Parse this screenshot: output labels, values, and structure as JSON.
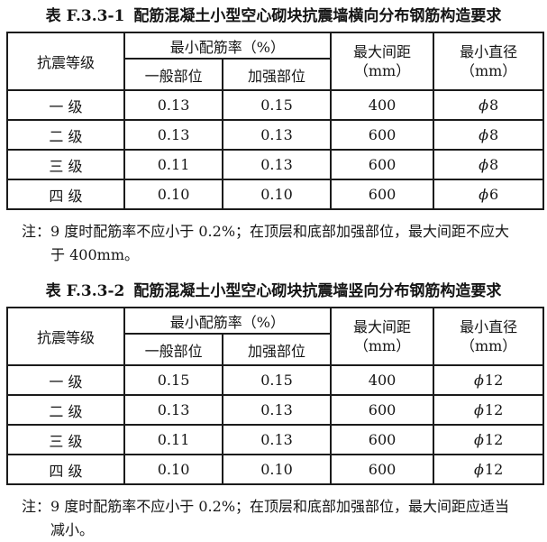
{
  "table1": {
    "title_label": "表 F.3.3-1",
    "title_text": "配筋混凝土小型空心砌块抗震墙横向分布钢筋构造要求",
    "header": {
      "seismic_grade": "抗震等级",
      "min_ratio_group": "最小配筋率（%）",
      "general_part": "一般部位",
      "strengthened_part": "加强部位",
      "max_spacing_line1": "最大间距",
      "max_spacing_line2": "（mm）",
      "min_diameter_line1": "最小直径",
      "min_diameter_line2": "（mm）"
    },
    "rows": [
      {
        "grade": "一 级",
        "general": "0.13",
        "strengthened": "0.15",
        "spacing": "400",
        "diameter": "8"
      },
      {
        "grade": "二 级",
        "general": "0.13",
        "strengthened": "0.13",
        "spacing": "600",
        "diameter": "8"
      },
      {
        "grade": "三 级",
        "general": "0.11",
        "strengthened": "0.13",
        "spacing": "600",
        "diameter": "8"
      },
      {
        "grade": "四 级",
        "general": "0.10",
        "strengthened": "0.10",
        "spacing": "600",
        "diameter": "6"
      }
    ],
    "diameter_symbol": "ϕ",
    "note_label": "注：",
    "note_line1": "9 度时配筋率不应小于 0.2%；在顶层和底部加强部位，最大间距不应大",
    "note_line2": "于 400mm。"
  },
  "table2": {
    "title_label": "表 F.3.3-2",
    "title_text": "配筋混凝土小型空心砌块抗震墙竖向分布钢筋构造要求",
    "header": {
      "seismic_grade": "抗震等级",
      "min_ratio_group": "最小配筋率（%）",
      "general_part": "一般部位",
      "strengthened_part": "加强部位",
      "max_spacing_line1": "最大间距",
      "max_spacing_line2": "（mm）",
      "min_diameter_line1": "最小直径",
      "min_diameter_line2": "（mm）"
    },
    "rows": [
      {
        "grade": "一 级",
        "general": "0.15",
        "strengthened": "0.15",
        "spacing": "400",
        "diameter": "12"
      },
      {
        "grade": "二 级",
        "general": "0.13",
        "strengthened": "0.13",
        "spacing": "600",
        "diameter": "12"
      },
      {
        "grade": "三 级",
        "general": "0.11",
        "strengthened": "0.13",
        "spacing": "600",
        "diameter": "12"
      },
      {
        "grade": "四 级",
        "general": "0.10",
        "strengthened": "0.10",
        "spacing": "600",
        "diameter": "12"
      }
    ],
    "diameter_symbol": "ϕ",
    "note_label": "注：",
    "note_line1": "9 度时配筋率不应小于 0.2%；在顶层和底部加强部位，最大间距应适当",
    "note_line2": "减小。"
  }
}
